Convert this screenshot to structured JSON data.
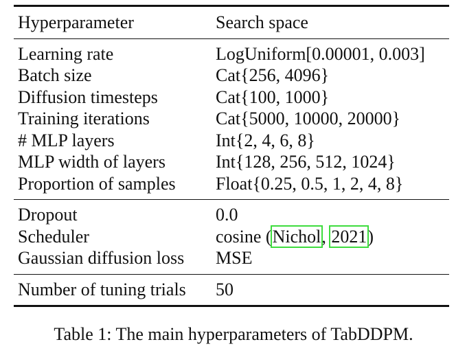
{
  "table": {
    "header": {
      "param": "Hyperparameter",
      "space": "Search space"
    },
    "sections": [
      [
        {
          "param": "Learning rate",
          "space": "LogUniform[0.00001, 0.003]"
        },
        {
          "param": "Batch size",
          "space": "Cat{256, 4096}"
        },
        {
          "param": "Diffusion timesteps",
          "space": "Cat{100, 1000}"
        },
        {
          "param": "Training iterations",
          "space": "Cat{5000, 10000, 20000}"
        },
        {
          "param": "# MLP layers",
          "space": "Int{2, 4, 6, 8}"
        },
        {
          "param": "MLP width of layers",
          "space": "Int{128, 256, 512, 1024}"
        },
        {
          "param": "Proportion of samples",
          "space": "Float{0.25, 0.5, 1, 2, 4, 8}"
        }
      ],
      [
        {
          "param": "Dropout",
          "space": "0.0"
        },
        {
          "param": "Scheduler",
          "space": "cosine (",
          "cite_author": "Nichol",
          "cite_sep": ", ",
          "cite_year": "2021",
          "space_end": ")"
        },
        {
          "param": "Gaussian diffusion loss",
          "space": "MSE"
        }
      ],
      [
        {
          "param": "Number of tuning trials",
          "space": "50"
        }
      ]
    ]
  },
  "caption": "Table 1: The main hyperparameters of TabDDPM."
}
